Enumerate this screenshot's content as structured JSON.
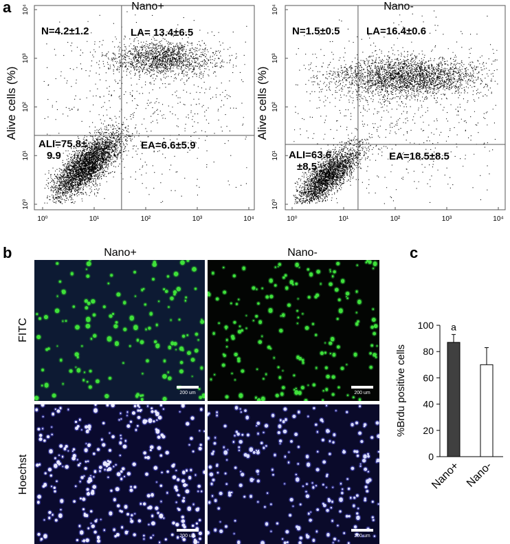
{
  "panel_labels": [
    "a",
    "b",
    "c"
  ],
  "flow_plots": [
    {
      "title": "Nano+",
      "ylabel": "Alive cells (%)",
      "log_scale": true,
      "xlim": [
        1,
        10000
      ],
      "ylim": [
        1,
        10000
      ],
      "xticks": [
        {
          "value": 1,
          "label": "10⁰"
        },
        {
          "value": 10,
          "label": "10¹"
        },
        {
          "value": 100,
          "label": "10²"
        },
        {
          "value": 1000,
          "label": "10³"
        },
        {
          "value": 10000,
          "label": "10⁴"
        }
      ],
      "yticks": [
        {
          "value": 1,
          "label": "10⁰"
        },
        {
          "value": 10,
          "label": "10¹"
        },
        {
          "value": 100,
          "label": "10²"
        },
        {
          "value": 1000,
          "label": "10³"
        },
        {
          "value": 10000,
          "label": "10⁴"
        }
      ],
      "gate": {
        "x": 34,
        "y": 26
      },
      "quadrants": {
        "N": "N=4.2±1.2",
        "LA": "LA= 13.4±6.5",
        "ALI": [
          "ALI=75.8±",
          "9.9"
        ],
        "EA": "EA=6.6±5.9"
      }
    },
    {
      "title": "Nano-",
      "ylabel": "Alive cells (%)",
      "log_scale": true,
      "xlim": [
        1,
        10000
      ],
      "ylim": [
        1,
        10000
      ],
      "xticks": [
        {
          "value": 1,
          "label": "10⁰"
        },
        {
          "value": 10,
          "label": "10¹"
        },
        {
          "value": 100,
          "label": "10²"
        },
        {
          "value": 1000,
          "label": "10³"
        },
        {
          "value": 10000,
          "label": "10⁴"
        }
      ],
      "yticks": [
        {
          "value": 1,
          "label": "10⁰"
        },
        {
          "value": 10,
          "label": "10¹"
        },
        {
          "value": 100,
          "label": "10²"
        },
        {
          "value": 1000,
          "label": "10³"
        },
        {
          "value": 10000,
          "label": "10⁴"
        }
      ],
      "gate": {
        "x": 19,
        "y": 17
      },
      "quadrants": {
        "N": "N=1.5±0.5",
        "LA": "LA=16.4±0.6",
        "ALI": [
          "ALI=63.6",
          "±8.5"
        ],
        "EA": "EA=18.5±8.5"
      }
    }
  ],
  "micrographs": {
    "columns": [
      "Nano+",
      "Nano-"
    ],
    "rows": [
      "FITC",
      "Hoechst"
    ],
    "scale_bar": "200 um"
  },
  "chart_data": {
    "type": "bar",
    "ylabel": "%Brdu positive cells",
    "categories": [
      "Nano+",
      "Nano-"
    ],
    "values": [
      87,
      70
    ],
    "errors": [
      6,
      13
    ],
    "colors": [
      "#404040",
      "#ffffff"
    ],
    "value_annotations": [
      "a",
      null
    ],
    "ylim": [
      0,
      100
    ],
    "yticks": [
      0,
      20,
      40,
      60,
      80,
      100
    ]
  }
}
